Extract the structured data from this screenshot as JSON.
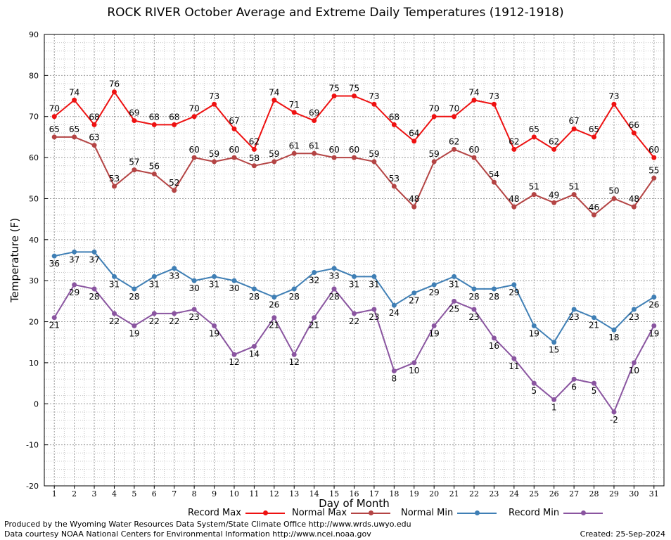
{
  "chart_data": {
    "type": "line",
    "title": "ROCK RIVER October Average and Extreme Daily Temperatures (1912-1918)",
    "xlabel": "Day of Month",
    "ylabel": "Temperature (F)",
    "ylim": [
      -20,
      90
    ],
    "yticks": [
      "-20",
      "-10",
      "0",
      "10",
      "20",
      "30",
      "40",
      "50",
      "60",
      "70",
      "80",
      "90"
    ],
    "x": [
      "1",
      "2",
      "3",
      "4",
      "5",
      "6",
      "7",
      "8",
      "9",
      "10",
      "11",
      "12",
      "13",
      "14",
      "15",
      "16",
      "17",
      "18",
      "19",
      "20",
      "21",
      "22",
      "23",
      "24",
      "25",
      "26",
      "27",
      "28",
      "29",
      "30",
      "31"
    ],
    "grid": true,
    "legend_position": "bottom",
    "series": [
      {
        "name": "Record Max",
        "color": "#ee1111",
        "label_pos": "above",
        "values": [
          70,
          74,
          68,
          76,
          69,
          68,
          68,
          70,
          73,
          67,
          62,
          74,
          71,
          69,
          75,
          75,
          73,
          68,
          64,
          70,
          70,
          74,
          73,
          62,
          65,
          62,
          67,
          65,
          73,
          66,
          60
        ]
      },
      {
        "name": "Normal Max",
        "color": "#b44444",
        "label_pos": "above",
        "values": [
          65,
          65,
          63,
          53,
          57,
          56,
          52,
          60,
          59,
          60,
          58,
          59,
          61,
          61,
          60,
          60,
          59,
          53,
          48,
          59,
          62,
          60,
          54,
          48,
          51,
          49,
          51,
          46,
          50,
          48,
          55
        ]
      },
      {
        "name": "Normal Min",
        "color": "#3f7fb5",
        "label_pos": "below",
        "values": [
          36,
          37,
          37,
          31,
          28,
          31,
          33,
          30,
          31,
          30,
          28,
          26,
          28,
          32,
          33,
          31,
          31,
          24,
          27,
          29,
          31,
          28,
          28,
          29,
          19,
          15,
          23,
          21,
          18,
          23,
          26
        ]
      },
      {
        "name": "Record Min",
        "color": "#8a55a0",
        "label_pos": "below",
        "values": [
          21,
          29,
          28,
          22,
          19,
          22,
          22,
          23,
          19,
          12,
          14,
          21,
          12,
          21,
          28,
          22,
          23,
          8,
          10,
          19,
          25,
          23,
          16,
          11,
          5,
          1,
          6,
          5,
          -2,
          10,
          19
        ]
      }
    ]
  },
  "footer": {
    "produced_by": "Produced by the Wyoming Water Resources Data System/State Climate Office http://www.wrds.uwyo.edu",
    "data_courtesy": "Data courtesy NOAA National Centers for Environmental Information http://www.ncei.noaa.gov",
    "created": "Created: 25-Sep-2024"
  }
}
